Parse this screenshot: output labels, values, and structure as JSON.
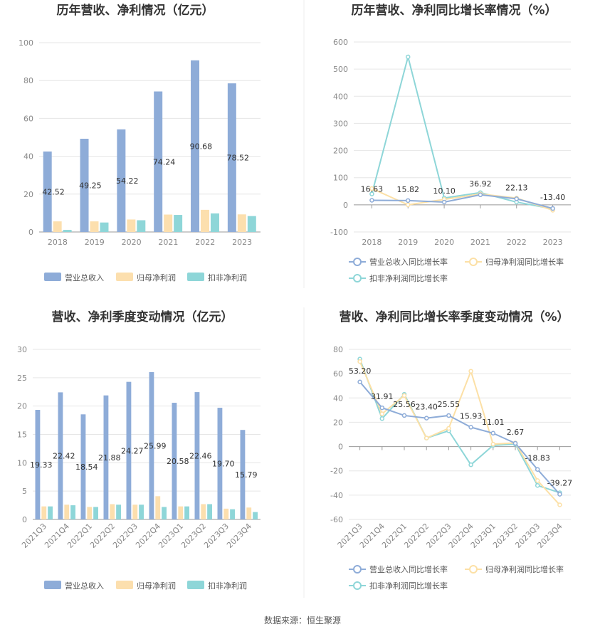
{
  "colors": {
    "revenue": "#8eacd8",
    "net_profit": "#fcdfae",
    "deducted_profit": "#8ed6d8",
    "revenue_growth": "#8eacd8",
    "net_growth": "#fce0a6",
    "deducted_growth": "#8ed6d8"
  },
  "footer": "数据来源：恒生聚源",
  "chart_data": [
    {
      "id": "annual_bar",
      "type": "bar",
      "title": "历年营收、净利情况（亿元）",
      "categories": [
        "2018",
        "2019",
        "2020",
        "2021",
        "2022",
        "2023"
      ],
      "ylim": [
        0,
        100
      ],
      "yticks": [
        0,
        20,
        40,
        60,
        80,
        100
      ],
      "series": [
        {
          "name": "营业总收入",
          "color_key": "revenue",
          "values": [
            42.52,
            49.25,
            54.22,
            74.24,
            90.68,
            78.52
          ],
          "labels": [
            "42.52",
            "49.25",
            "54.22",
            "74.24",
            "90.68",
            "78.52"
          ]
        },
        {
          "name": "归母净利润",
          "color_key": "net_profit",
          "values": [
            5.6,
            5.6,
            6.6,
            9.2,
            11.7,
            9.3
          ]
        },
        {
          "name": "扣非净利润",
          "color_key": "deducted_profit",
          "values": [
            1.1,
            5.0,
            6.2,
            9.0,
            9.8,
            8.4
          ]
        }
      ],
      "legend": [
        "营业总收入",
        "归母净利润",
        "扣非净利润"
      ]
    },
    {
      "id": "annual_line",
      "type": "line",
      "title": "历年营收、净利同比增长率情况（%）",
      "categories": [
        "2018",
        "2019",
        "2020",
        "2021",
        "2022",
        "2023"
      ],
      "ylim": [
        -100,
        600
      ],
      "yticks": [
        -100,
        0,
        100,
        200,
        300,
        400,
        500,
        600
      ],
      "series": [
        {
          "name": "营业总收入同比增长率",
          "color_key": "revenue_growth",
          "values": [
            16.63,
            15.82,
            10.1,
            36.92,
            22.13,
            -13.4
          ],
          "labels": [
            "16.63",
            "15.82",
            "10.10",
            "36.92",
            "22.13",
            "-13.40"
          ]
        },
        {
          "name": "归母净利润同比增长率",
          "color_key": "net_growth",
          "values": [
            60,
            0,
            20,
            40,
            25,
            -20
          ]
        },
        {
          "name": "扣非净利润同比增长率",
          "color_key": "deducted_growth",
          "values": [
            40,
            545,
            25,
            45,
            10,
            -15
          ]
        }
      ],
      "legend": [
        "营业总收入同比增长率",
        "归母净利润同比增长率",
        "扣非净利润同比增长率"
      ]
    },
    {
      "id": "quarter_bar",
      "type": "bar",
      "title": "营收、净利季度变动情况（亿元）",
      "categories": [
        "2021Q3",
        "2021Q4",
        "2022Q1",
        "2022Q2",
        "2022Q3",
        "2022Q4",
        "2023Q1",
        "2023Q2",
        "2023Q3",
        "2023Q4"
      ],
      "ylim": [
        0,
        30
      ],
      "yticks": [
        0,
        5,
        10,
        15,
        20,
        25,
        30
      ],
      "series": [
        {
          "name": "营业总收入",
          "color_key": "revenue",
          "values": [
            19.33,
            22.42,
            18.54,
            21.88,
            24.27,
            25.99,
            20.58,
            22.46,
            19.7,
            15.79
          ],
          "labels": [
            "19.33",
            "22.42",
            "18.54",
            "21.88",
            "24.27",
            "25.99",
            "20.58",
            "22.46",
            "19.70",
            "15.79"
          ]
        },
        {
          "name": "归母净利润",
          "color_key": "net_profit",
          "values": [
            2.3,
            2.6,
            2.2,
            2.7,
            2.6,
            4.1,
            2.3,
            2.7,
            1.9,
            2.1
          ]
        },
        {
          "name": "扣非净利润",
          "color_key": "deducted_profit",
          "values": [
            2.3,
            2.5,
            2.2,
            2.6,
            2.6,
            2.2,
            2.3,
            2.7,
            1.8,
            1.3
          ]
        }
      ],
      "legend": [
        "营业总收入",
        "归母净利润",
        "扣非净利润"
      ]
    },
    {
      "id": "quarter_line",
      "type": "line",
      "title": "营收、净利同比增长率季度变动情况（%）",
      "categories": [
        "2021Q3",
        "2021Q4",
        "2022Q1",
        "2022Q2",
        "2022Q3",
        "2022Q4",
        "2023Q1",
        "2023Q2",
        "2023Q3",
        "2023Q4"
      ],
      "ylim": [
        -60,
        80
      ],
      "yticks": [
        -60,
        -40,
        -20,
        0,
        20,
        40,
        60,
        80
      ],
      "series": [
        {
          "name": "营业总收入同比增长率",
          "color_key": "revenue_growth",
          "values": [
            53.2,
            31.91,
            25.56,
            23.4,
            25.55,
            15.93,
            11.01,
            2.67,
            -18.83,
            -39.27
          ],
          "labels": [
            "53.20",
            "31.91",
            "25.56",
            "23.40",
            "25.55",
            "15.93",
            "11.01",
            "2.67",
            "-18.83",
            "-39.27"
          ]
        },
        {
          "name": "归母净利润同比增长率",
          "color_key": "net_growth",
          "values": [
            70,
            27,
            42,
            7,
            15,
            62,
            2,
            3,
            -28,
            -48
          ]
        },
        {
          "name": "扣非净利润同比增长率",
          "color_key": "deducted_growth",
          "values": [
            72,
            23,
            43,
            7,
            13,
            -15,
            1,
            2,
            -32,
            -38
          ]
        }
      ],
      "legend": [
        "营业总收入同比增长率",
        "归母净利润同比增长率",
        "扣非净利润同比增长率"
      ]
    }
  ]
}
